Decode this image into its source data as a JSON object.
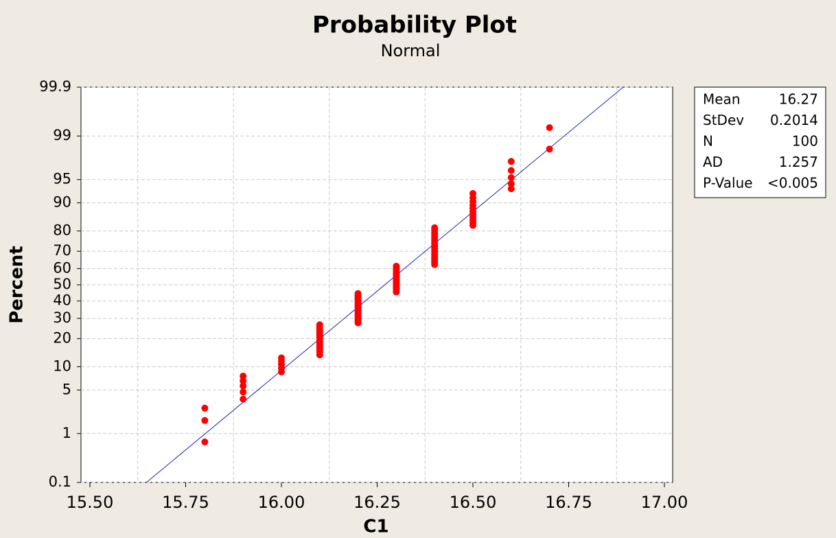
{
  "chart_data": {
    "type": "scatter",
    "title": "Probability Plot",
    "subtitle": "Normal",
    "x_label": "C1",
    "y_label": "Percent",
    "y_scale": "normal-probability",
    "grid": true,
    "color": "#ff0000",
    "fit_color": "#1f1fb4",
    "xlim": [
      15.4767,
      17.0215
    ],
    "xticks": [
      {
        "value": 15.5,
        "label": "15.50"
      },
      {
        "value": 15.75,
        "label": "15.75"
      },
      {
        "value": 16.0,
        "label": "16.00"
      },
      {
        "value": 16.25,
        "label": "16.25"
      },
      {
        "value": 16.5,
        "label": "16.50"
      },
      {
        "value": 16.75,
        "label": "16.75"
      },
      {
        "value": 17.0,
        "label": "17.00"
      }
    ],
    "xgrid": [
      15.625,
      15.875,
      16.125,
      16.375,
      16.625,
      16.875
    ],
    "ylim": [
      0.1,
      99.9
    ],
    "yticks": [
      0.1,
      1,
      5,
      10,
      20,
      30,
      40,
      50,
      60,
      70,
      80,
      90,
      95,
      99,
      99.9
    ],
    "x": [
      15.8,
      15.8,
      15.8,
      15.9,
      15.9,
      15.9,
      15.9,
      15.9,
      16,
      16,
      16,
      16,
      16,
      16.1,
      16.1,
      16.1,
      16.1,
      16.1,
      16.1,
      16.1,
      16.1,
      16.1,
      16.1,
      16.1,
      16.1,
      16.1,
      16.1,
      16.2,
      16.2,
      16.2,
      16.2,
      16.2,
      16.2,
      16.2,
      16.2,
      16.2,
      16.2,
      16.2,
      16.2,
      16.2,
      16.2,
      16.2,
      16.2,
      16.2,
      16.2,
      16.3,
      16.3,
      16.3,
      16.3,
      16.3,
      16.3,
      16.3,
      16.3,
      16.3,
      16.3,
      16.3,
      16.3,
      16.3,
      16.3,
      16.3,
      16.3,
      16.3,
      16.4,
      16.4,
      16.4,
      16.4,
      16.4,
      16.4,
      16.4,
      16.4,
      16.4,
      16.4,
      16.4,
      16.4,
      16.4,
      16.4,
      16.4,
      16.4,
      16.4,
      16.4,
      16.4,
      16.4,
      16.5,
      16.5,
      16.5,
      16.5,
      16.5,
      16.5,
      16.5,
      16.5,
      16.5,
      16.5,
      16.5,
      16.6,
      16.6,
      16.6,
      16.6,
      16.6,
      16.7,
      16.7
    ],
    "values": [
      0.7,
      1.69,
      2.69,
      3.69,
      4.68,
      5.68,
      6.67,
      7.67,
      8.67,
      9.66,
      10.66,
      11.65,
      12.65,
      13.65,
      14.64,
      15.64,
      16.63,
      17.63,
      18.63,
      19.62,
      20.62,
      21.61,
      22.61,
      23.61,
      24.6,
      25.6,
      26.59,
      27.59,
      28.59,
      29.58,
      30.58,
      31.57,
      32.57,
      33.57,
      34.56,
      35.56,
      36.55,
      37.55,
      38.55,
      39.54,
      40.54,
      41.53,
      42.53,
      43.53,
      44.52,
      45.52,
      46.51,
      47.51,
      48.51,
      49.5,
      50.5,
      51.49,
      52.49,
      53.49,
      54.48,
      55.48,
      56.47,
      57.47,
      58.47,
      59.46,
      60.46,
      61.45,
      62.45,
      63.45,
      64.44,
      65.44,
      66.43,
      67.43,
      68.43,
      69.42,
      70.42,
      71.41,
      72.41,
      73.41,
      74.4,
      75.4,
      76.39,
      77.39,
      78.39,
      79.38,
      80.38,
      81.37,
      82.37,
      83.37,
      84.36,
      85.36,
      86.35,
      87.35,
      88.35,
      89.34,
      90.34,
      91.33,
      92.33,
      93.33,
      94.32,
      95.32,
      96.31,
      97.31,
      98.31,
      99.3
    ],
    "stats": [
      {
        "label": "Mean",
        "value": 16.27
      },
      {
        "label": "StDev",
        "value": 0.2014
      },
      {
        "label": "N",
        "value": 100
      },
      {
        "label": "AD",
        "value": 1.257
      },
      {
        "label": "P-Value",
        "value": "<0.005"
      }
    ]
  }
}
